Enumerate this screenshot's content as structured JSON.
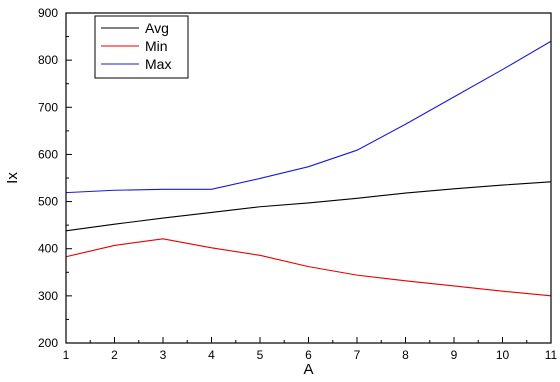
{
  "chart_data": {
    "type": "line",
    "title": "",
    "xlabel": "A",
    "ylabel": "Ix",
    "xlim": [
      1,
      11
    ],
    "ylim": [
      200,
      900
    ],
    "x": [
      1,
      2,
      3,
      4,
      5,
      6,
      7,
      8,
      9,
      10,
      11
    ],
    "yticks": [
      200,
      300,
      400,
      500,
      600,
      700,
      800,
      900
    ],
    "grid": false,
    "legend": {
      "placement": "top-left",
      "box": true
    },
    "series": [
      {
        "name": "Avg",
        "color": "#000000",
        "values": [
          438,
          452,
          465,
          477,
          489,
          497,
          507,
          518,
          527,
          535,
          542
        ]
      },
      {
        "name": "Min",
        "color": "#e60000",
        "values": [
          383,
          407,
          421,
          402,
          386,
          362,
          344,
          332,
          321,
          310,
          300
        ]
      },
      {
        "name": "Max",
        "color": "#1a1adb",
        "values": [
          519,
          524,
          526,
          526,
          549,
          574,
          609,
          664,
          722,
          780,
          840
        ]
      }
    ]
  }
}
